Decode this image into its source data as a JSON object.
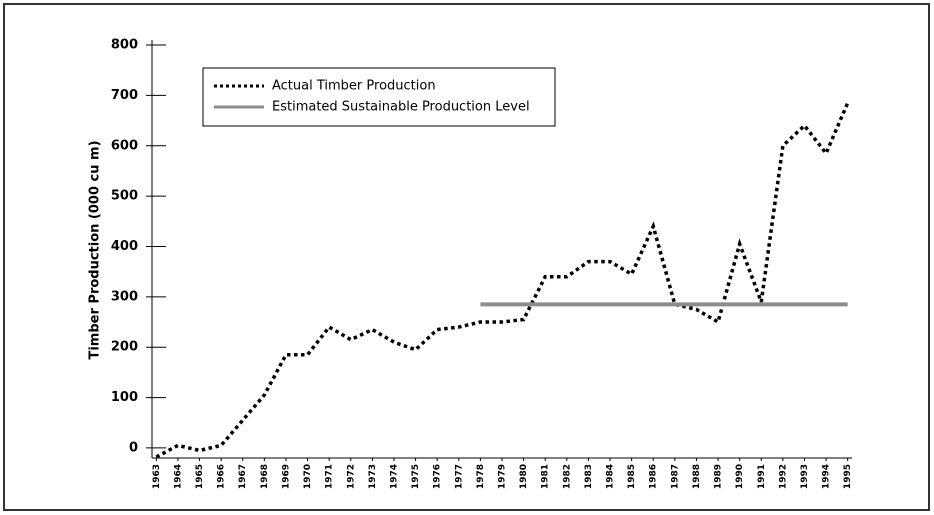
{
  "chart_data": {
    "type": "line",
    "y_axis_label": "Timber Production (000 cu m)",
    "ylim": [
      -20,
      810
    ],
    "yticks": [
      0,
      100,
      200,
      300,
      400,
      500,
      600,
      700,
      800
    ],
    "xlim": [
      1962.8,
      1995.2
    ],
    "xticks": [
      1963,
      1964,
      1965,
      1966,
      1967,
      1968,
      1969,
      1970,
      1971,
      1972,
      1973,
      1974,
      1975,
      1976,
      1977,
      1978,
      1979,
      1980,
      1981,
      1982,
      1983,
      1984,
      1985,
      1986,
      1987,
      1988,
      1989,
      1990,
      1991,
      1992,
      1993,
      1994,
      1995
    ],
    "legend": "upper left",
    "series": [
      {
        "name": "Actual Timber Production",
        "color": "#000000",
        "style": "dotted",
        "x": [
          1963,
          1964,
          1965,
          1966,
          1967,
          1968,
          1969,
          1970,
          1971,
          1972,
          1973,
          1974,
          1975,
          1976,
          1977,
          1978,
          1979,
          1980,
          1981,
          1982,
          1983,
          1984,
          1985,
          1986,
          1987,
          1988,
          1989,
          1990,
          1991,
          1992,
          1993,
          1994,
          1995
        ],
        "values": [
          -18,
          5,
          -5,
          5,
          55,
          105,
          185,
          185,
          240,
          215,
          235,
          210,
          195,
          235,
          240,
          250,
          250,
          255,
          340,
          340,
          370,
          370,
          345,
          440,
          285,
          275,
          250,
          405,
          290,
          600,
          640,
          585,
          685
        ]
      },
      {
        "name": "Estimated Sustainable Production Level",
        "color": "#8c8c8c",
        "style": "solid",
        "x": [
          1978,
          1995
        ],
        "values": [
          285,
          285
        ]
      }
    ]
  }
}
